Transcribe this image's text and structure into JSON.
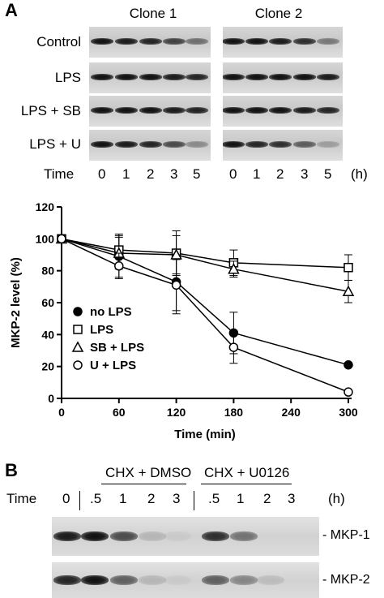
{
  "panel_a": {
    "label": "A",
    "clone_titles": [
      "Clone 1",
      "Clone 2"
    ],
    "row_labels": [
      "Control",
      "LPS",
      "LPS + SB",
      "LPS + U"
    ],
    "time_label": "Time",
    "time_points": [
      "0",
      "1",
      "2",
      "3",
      "5"
    ],
    "time_unit": "(h)",
    "band_intensities": {
      "clone1": [
        [
          1.0,
          0.95,
          0.9,
          0.75,
          0.5
        ],
        [
          1.0,
          1.0,
          1.0,
          0.95,
          0.9
        ],
        [
          1.0,
          1.0,
          1.0,
          0.95,
          0.92
        ],
        [
          1.0,
          0.95,
          0.9,
          0.7,
          0.35
        ]
      ],
      "clone2": [
        [
          1.0,
          1.0,
          0.95,
          0.85,
          0.45
        ],
        [
          1.0,
          1.0,
          1.0,
          1.0,
          0.95
        ],
        [
          1.0,
          1.0,
          1.0,
          0.95,
          0.9
        ],
        [
          1.0,
          0.9,
          0.85,
          0.6,
          0.25
        ]
      ]
    }
  },
  "chart_data": {
    "type": "line",
    "xlabel": "Time (min)",
    "ylabel": "MKP-2 level (%)",
    "x": [
      0,
      60,
      120,
      180,
      300
    ],
    "xticks": [
      0,
      60,
      120,
      180,
      240,
      300
    ],
    "yticks": [
      0,
      20,
      40,
      60,
      80,
      100,
      120
    ],
    "xlim": [
      0,
      300
    ],
    "ylim": [
      0,
      120
    ],
    "legend_position": "bottom-left",
    "series": [
      {
        "name": "no LPS",
        "marker": "filled-circle",
        "values": [
          100,
          89,
          73,
          41,
          21
        ],
        "errors": [
          0,
          13,
          20,
          13,
          0
        ]
      },
      {
        "name": "LPS",
        "marker": "open-square",
        "values": [
          100,
          93,
          91,
          85,
          82
        ],
        "errors": [
          0,
          10,
          14,
          8,
          8
        ]
      },
      {
        "name": "SB + LPS",
        "marker": "open-triangle",
        "values": [
          100,
          91,
          90,
          81,
          67
        ],
        "errors": [
          0,
          10,
          12,
          5,
          7
        ]
      },
      {
        "name": "U + LPS",
        "marker": "open-circle",
        "values": [
          100,
          83,
          71,
          32,
          4
        ],
        "errors": [
          0,
          8,
          16,
          10,
          0
        ]
      }
    ]
  },
  "panel_b": {
    "label": "B",
    "group_labels": [
      "CHX + DMSO",
      "CHX + U0126"
    ],
    "time_label": "Time",
    "time_points": [
      "0",
      ".5",
      "1",
      "2",
      "3",
      ".5",
      "1",
      "2",
      "3"
    ],
    "time_unit": "(h)",
    "band_labels": [
      "- MKP-1",
      "- MKP-2"
    ],
    "band_intensities": {
      "mkp1": [
        0.95,
        1.0,
        0.7,
        0.15,
        0.05,
        0.85,
        0.5,
        0.0,
        0.0
      ],
      "mkp2": [
        0.9,
        1.0,
        0.6,
        0.15,
        0.05,
        0.6,
        0.4,
        0.12,
        0.0
      ]
    }
  }
}
